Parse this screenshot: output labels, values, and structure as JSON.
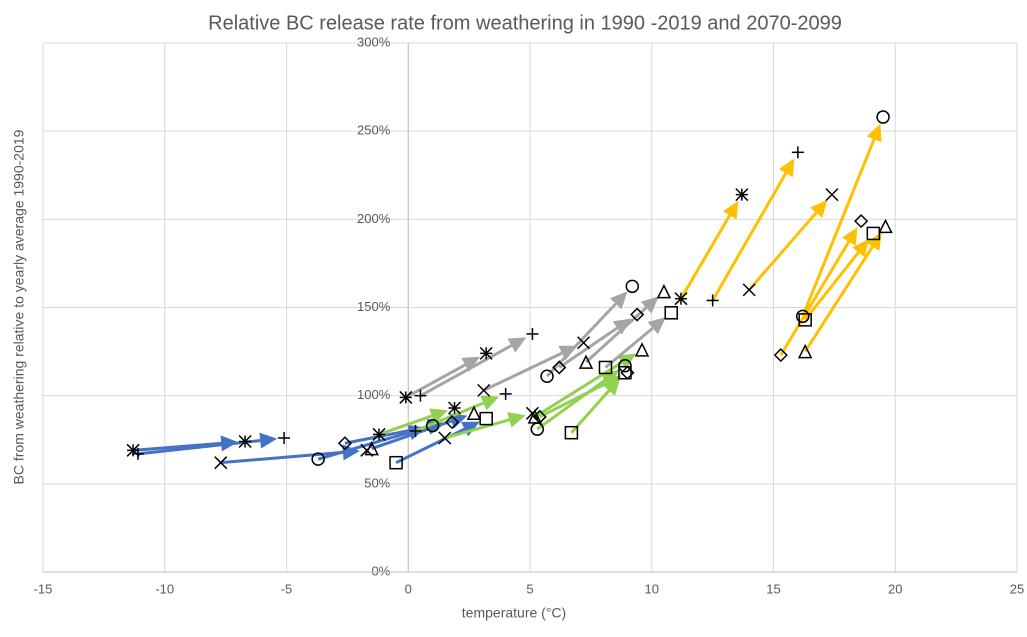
{
  "chart_data": {
    "type": "arrow-scatter",
    "title": "Relative BC release rate from weathering in 1990  -2019 and 2070-2099",
    "x_label": "temperature (°C)",
    "y_label": "BC from weathering relative to yearly average 1990-2019",
    "xlim": [
      -15,
      25
    ],
    "xticks": [
      -15,
      -10,
      -5,
      0,
      5,
      10,
      15,
      20,
      25
    ],
    "ylim": [
      0,
      300
    ],
    "yticks": [
      {
        "value": 0,
        "label": "0%"
      },
      {
        "value": 50,
        "label": "50%"
      },
      {
        "value": 100,
        "label": "100%"
      },
      {
        "value": 150,
        "label": "150%"
      },
      {
        "value": 200,
        "label": "200%"
      },
      {
        "value": 250,
        "label": "250%"
      },
      {
        "value": 300,
        "label": "300%"
      }
    ],
    "grid": true,
    "marker_color": "#000000",
    "series": [
      {
        "color": "#4472C4",
        "markers": [
          "asterisk",
          "plus",
          "x",
          "circle",
          "diamond",
          "square",
          "triangle"
        ],
        "x_start": [
          -11.3,
          -11.1,
          -7.7,
          -3.7,
          -2.6,
          -0.5,
          -1.5
        ],
        "y_start": [
          69,
          67,
          62,
          64,
          73,
          62,
          70
        ],
        "x_end": [
          -6.7,
          -5.1,
          -1.7,
          1.0,
          1.8,
          3.2,
          2.7
        ],
        "y_end": [
          74,
          76,
          69,
          83,
          85,
          87,
          90
        ]
      },
      {
        "color": "#92D050",
        "markers": [
          "asterisk",
          "plus",
          "x",
          "circle",
          "diamond",
          "square",
          "triangle"
        ],
        "x_start": [
          -1.2,
          0.3,
          1.5,
          5.3,
          5.4,
          6.7,
          5.2
        ],
        "y_start": [
          78,
          80,
          76,
          81,
          88,
          79,
          88
        ],
        "x_end": [
          1.9,
          4.0,
          5.1,
          8.9,
          9.0,
          8.9,
          9.6
        ],
        "y_end": [
          93,
          101,
          90,
          117,
          113,
          113,
          126
        ]
      },
      {
        "color": "#A5A5A5",
        "markers": [
          "asterisk",
          "plus",
          "x",
          "circle",
          "diamond",
          "triangle",
          "square"
        ],
        "x_start": [
          -0.1,
          0.5,
          3.1,
          5.7,
          6.2,
          7.3,
          8.1
        ],
        "y_start": [
          99,
          100,
          103,
          111,
          116,
          119,
          116
        ],
        "x_end": [
          3.2,
          5.1,
          7.2,
          9.2,
          9.4,
          10.5,
          10.8
        ],
        "y_end": [
          124,
          135,
          130,
          162,
          146,
          159,
          147
        ]
      },
      {
        "color": "#FFC000",
        "markers": [
          "asterisk",
          "plus",
          "x",
          "circle",
          "diamond",
          "square",
          "triangle"
        ],
        "x_start": [
          11.2,
          12.5,
          14.0,
          16.2,
          15.3,
          16.3,
          16.3
        ],
        "y_start": [
          155,
          154,
          160,
          145,
          123,
          143,
          125
        ],
        "x_end": [
          13.7,
          16.0,
          17.4,
          19.5,
          18.6,
          19.1,
          19.6
        ],
        "y_end": [
          214,
          238,
          214,
          258,
          199,
          192,
          196
        ]
      }
    ]
  }
}
